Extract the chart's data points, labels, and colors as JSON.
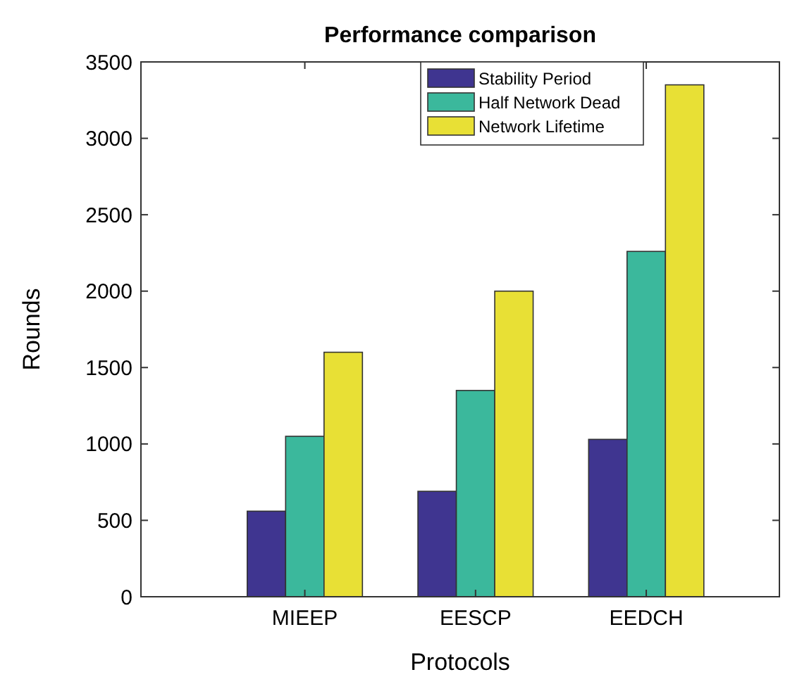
{
  "chart_data": {
    "type": "bar",
    "title": "Performance comparison",
    "xlabel": "Protocols",
    "ylabel": "Rounds",
    "categories": [
      "MIEEP",
      "EESCP",
      "EEDCH"
    ],
    "series": [
      {
        "name": "Stability Period",
        "color": "#3f3590",
        "values": [
          560,
          690,
          1030
        ]
      },
      {
        "name": "Half Network Dead",
        "color": "#3bb89c",
        "values": [
          1050,
          1350,
          2260
        ]
      },
      {
        "name": "Network Lifetime",
        "color": "#e8e035",
        "values": [
          1600,
          2000,
          3350
        ]
      }
    ],
    "ylim": [
      0,
      3500
    ],
    "yticks": [
      0,
      500,
      1000,
      1500,
      2000,
      2500,
      3000,
      3500
    ],
    "grid": false,
    "legend": "top"
  }
}
